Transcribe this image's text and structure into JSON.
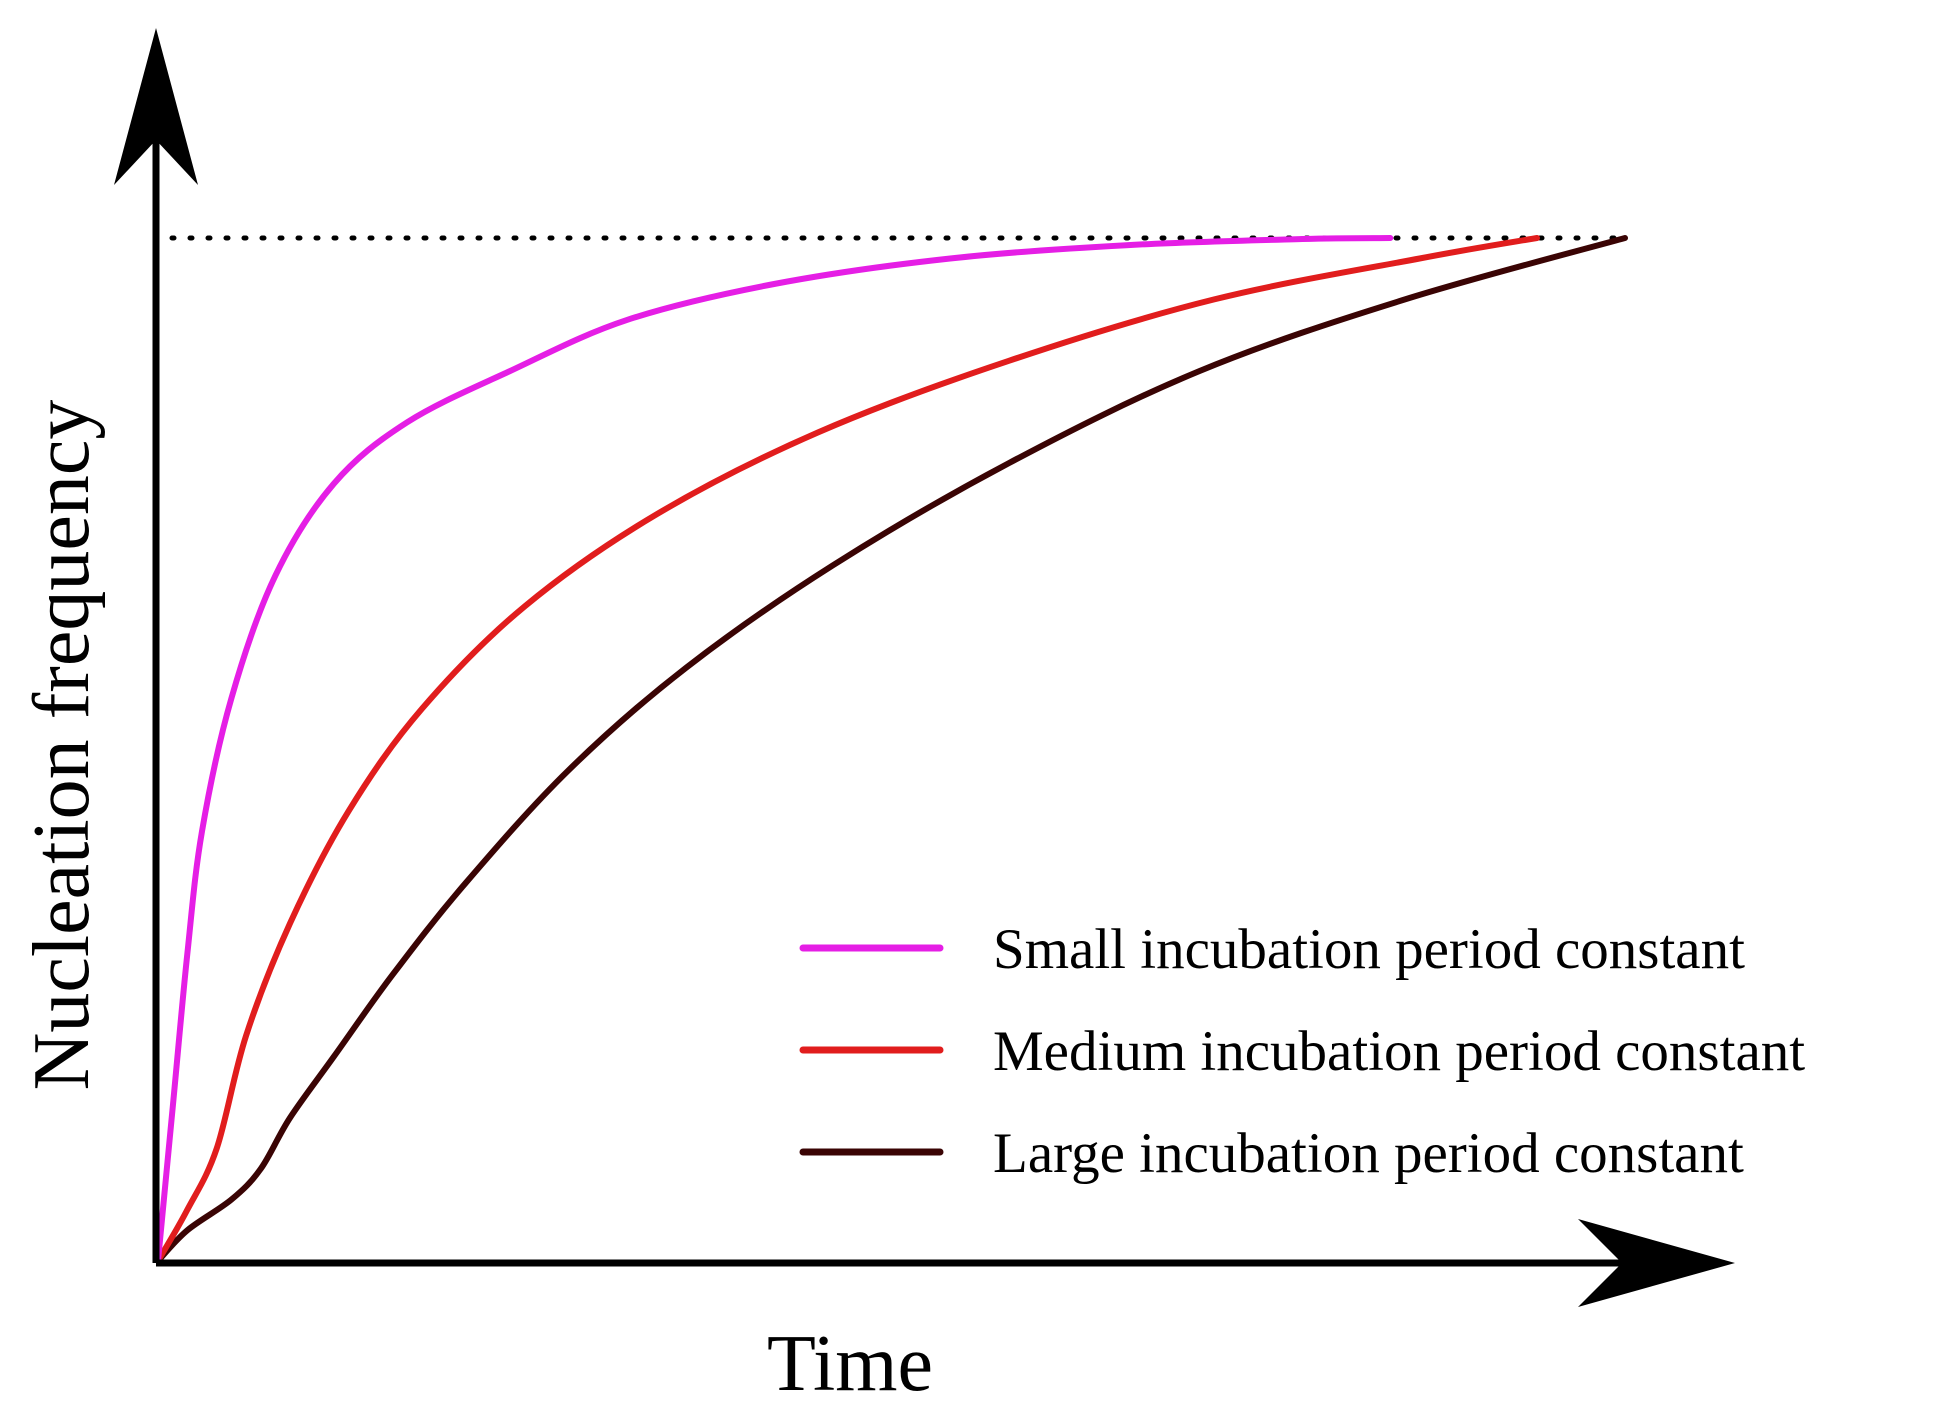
{
  "chart_data": {
    "type": "line",
    "title": "",
    "xlabel": "Time",
    "ylabel": "Nucleation frequency",
    "xlim": [
      0,
      1
    ],
    "ylim": [
      0,
      1
    ],
    "grid": false,
    "ticks": false,
    "legend_position": "bottom-right",
    "asymptote": {
      "style": "dotted",
      "y": 1.0,
      "color": "#000000"
    },
    "series": [
      {
        "name": "Small incubation period constant",
        "color": "#e51ee5",
        "x": [
          0,
          0.01,
          0.02,
          0.03,
          0.05,
          0.08,
          0.12,
          0.17,
          0.24,
          0.32,
          0.42,
          0.54,
          0.66,
          0.78,
          0.84
        ],
        "y": [
          0,
          0.15,
          0.3,
          0.42,
          0.55,
          0.67,
          0.76,
          0.82,
          0.87,
          0.92,
          0.955,
          0.98,
          0.993,
          0.999,
          1.0
        ]
      },
      {
        "name": "Medium incubation period constant",
        "color": "#e11d1d",
        "x": [
          0,
          0.02,
          0.04,
          0.06,
          0.09,
          0.13,
          0.18,
          0.25,
          0.34,
          0.45,
          0.58,
          0.72,
          0.86,
          0.94
        ],
        "y": [
          0,
          0.05,
          0.11,
          0.22,
          0.33,
          0.44,
          0.54,
          0.64,
          0.73,
          0.81,
          0.88,
          0.94,
          0.98,
          1.0
        ]
      },
      {
        "name": "Large incubation period constant",
        "color": "#3a0404",
        "x": [
          0,
          0.02,
          0.05,
          0.07,
          0.09,
          0.12,
          0.16,
          0.21,
          0.28,
          0.36,
          0.46,
          0.58,
          0.71,
          0.85,
          1.0
        ],
        "y": [
          0,
          0.03,
          0.06,
          0.09,
          0.14,
          0.2,
          0.28,
          0.37,
          0.48,
          0.58,
          0.68,
          0.78,
          0.87,
          0.94,
          1.0
        ]
      }
    ]
  }
}
